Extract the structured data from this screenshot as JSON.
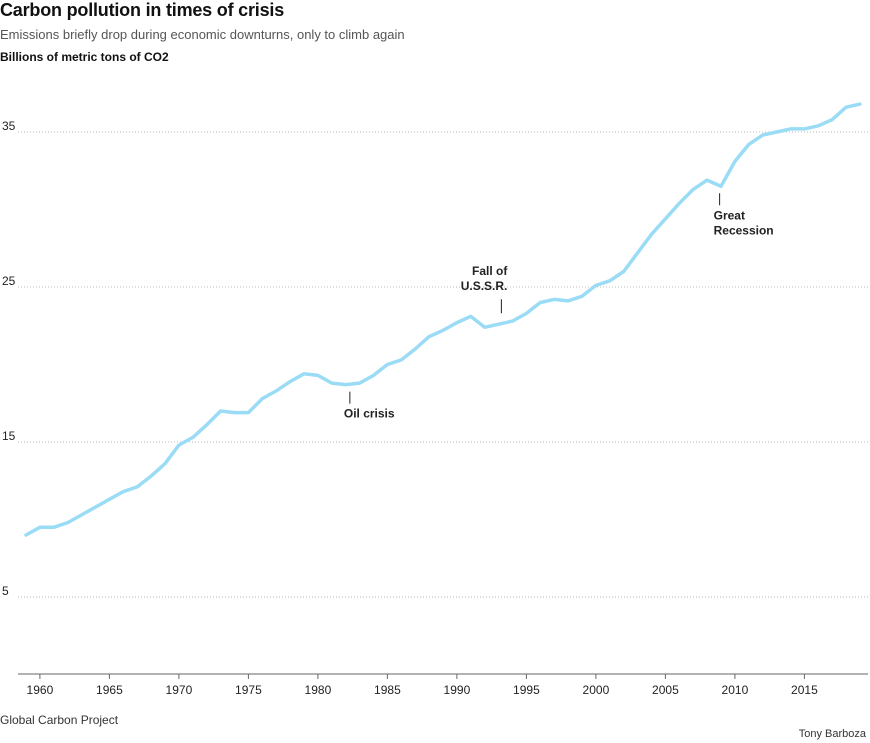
{
  "header": {
    "title": "Carbon pollution in times of crisis",
    "subtitle": "Emissions briefly drop during economic downturns, only to climb again",
    "unit_label": "Billions of metric tons of CO2"
  },
  "footer": {
    "source": "Global Carbon Project",
    "credit": "Tony Barboza"
  },
  "colors": {
    "line": "#9adcf5",
    "grid": "#bbbbbb",
    "axis": "#666666",
    "text": "#222222"
  },
  "chart_data": {
    "type": "line",
    "title": "Carbon pollution in times of crisis",
    "ylabel": "Billions of metric tons of CO2",
    "xlabel": "",
    "xlim": [
      1959,
      2019
    ],
    "ylim": [
      0,
      38
    ],
    "grid": "horizontal dotted",
    "legend": "none",
    "x_ticks": [
      1960,
      1965,
      1970,
      1975,
      1980,
      1985,
      1990,
      1995,
      2000,
      2005,
      2010,
      2015
    ],
    "y_ticks": [
      5,
      15,
      25,
      35
    ],
    "x_tick_labels": [
      "1960",
      "1965",
      "1970",
      "1975",
      "1980",
      "1985",
      "1990",
      "1995",
      "2000",
      "2005",
      "2010",
      "2015"
    ],
    "y_tick_labels": [
      "5",
      "15",
      "25",
      "35"
    ],
    "series": [
      {
        "x": [
          1959,
          1960,
          1961,
          1962,
          1963,
          1964,
          1965,
          1966,
          1967,
          1968,
          1969,
          1970,
          1971,
          1972,
          1973,
          1974,
          1975,
          1976,
          1977,
          1978,
          1979,
          1980,
          1981,
          1982,
          1983,
          1984,
          1985,
          1986,
          1987,
          1988,
          1989,
          1990,
          1991,
          1992,
          1993,
          1994,
          1995,
          1996,
          1997,
          1998,
          1999,
          2000,
          2001,
          2002,
          2003,
          2004,
          2005,
          2006,
          2007,
          2008,
          2009,
          2010,
          2011,
          2012,
          2013,
          2014,
          2015,
          2016,
          2017,
          2018,
          2019
        ],
        "values": [
          9.0,
          9.5,
          9.5,
          9.8,
          10.3,
          10.8,
          11.3,
          11.8,
          12.1,
          12.8,
          13.6,
          14.8,
          15.3,
          16.1,
          17.0,
          16.9,
          16.9,
          17.8,
          18.3,
          18.9,
          19.4,
          19.3,
          18.8,
          18.7,
          18.8,
          19.3,
          20.0,
          20.3,
          21.0,
          21.8,
          22.2,
          22.7,
          23.1,
          22.4,
          22.6,
          22.8,
          23.3,
          24.0,
          24.2,
          24.1,
          24.4,
          25.1,
          25.4,
          26.0,
          27.2,
          28.4,
          29.4,
          30.4,
          31.3,
          31.9,
          31.5,
          33.1,
          34.2,
          34.8,
          35.0,
          35.2,
          35.2,
          35.4,
          35.8,
          36.6,
          36.8
        ]
      }
    ],
    "annotations": [
      {
        "label_lines": [
          "Oil crisis"
        ],
        "x": 1982.3,
        "y": 18.7,
        "position": "below"
      },
      {
        "label_lines": [
          "Fall of",
          "U.S.S.R."
        ],
        "x": 1993.2,
        "y": 22.6,
        "position": "above"
      },
      {
        "label_lines": [
          "Great",
          "Recession"
        ],
        "x": 2008.9,
        "y": 31.5,
        "position": "below"
      }
    ]
  }
}
